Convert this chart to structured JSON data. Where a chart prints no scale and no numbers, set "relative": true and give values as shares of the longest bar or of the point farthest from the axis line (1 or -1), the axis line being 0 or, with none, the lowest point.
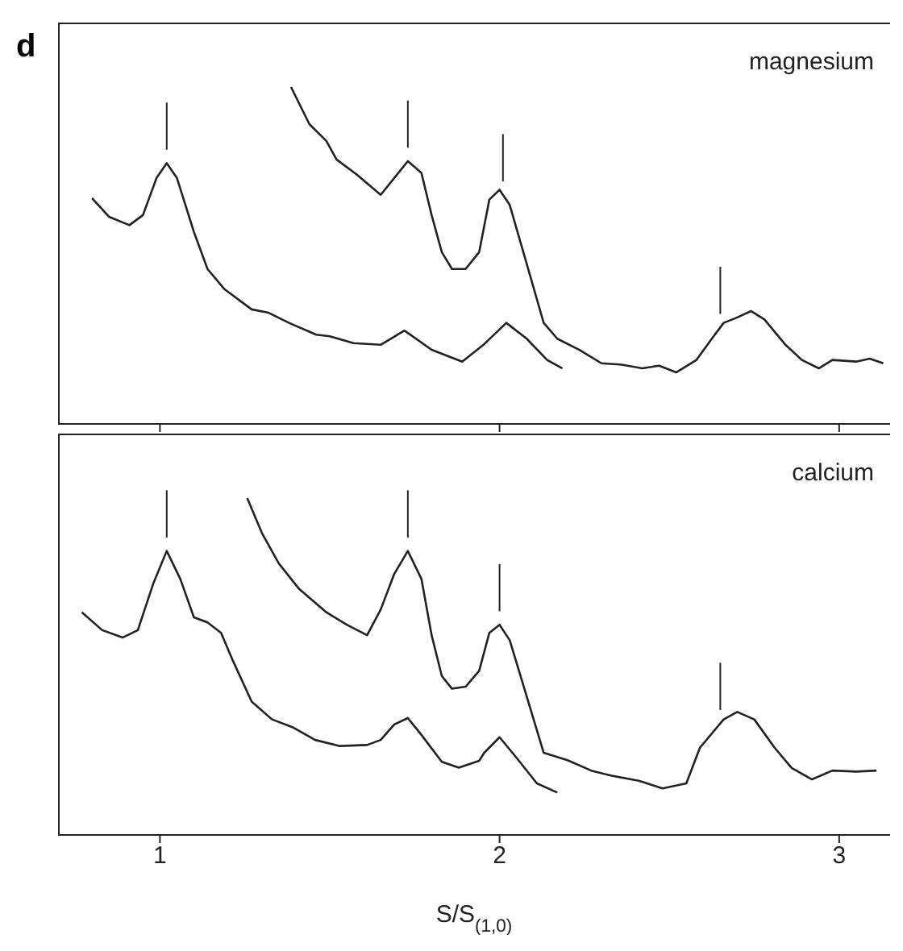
{
  "chart_data": [
    {
      "type": "line",
      "title": "d",
      "relative": true,
      "xlim": [
        0.7,
        3.15
      ],
      "xticks": [
        1,
        2,
        3
      ],
      "tick_labels": false,
      "marker": "none",
      "line_style": "solid",
      "annotations": [
        "magnesium"
      ],
      "ref_lines": [
        {
          "axis": "x",
          "value": 1.02
        },
        {
          "axis": "x",
          "value": 1.73
        },
        {
          "axis": "x",
          "value": 2.01
        },
        {
          "axis": "x",
          "value": 2.65
        }
      ],
      "series": [
        {
          "color": "#222222",
          "x": [
            0.8,
            0.85,
            0.91,
            0.95,
            0.99,
            1.02,
            1.05,
            1.1,
            1.14,
            1.19,
            1.27,
            1.32,
            1.38,
            1.46,
            1.5,
            1.57,
            1.65,
            1.72,
            1.8,
            1.89,
            1.955,
            2.02,
            2.08,
            2.14,
            2.185
          ],
          "values": [
            0.67,
            0.615,
            0.59,
            0.62,
            0.73,
            0.774,
            0.73,
            0.57,
            0.46,
            0.4,
            0.34,
            0.33,
            0.3,
            0.265,
            0.26,
            0.24,
            0.235,
            0.277,
            0.22,
            0.185,
            0.237,
            0.3,
            0.253,
            0.19,
            0.165
          ]
        },
        {
          "color": "#222222",
          "x": [
            1.386,
            1.44,
            1.49,
            1.52,
            1.58,
            1.65,
            1.69,
            1.73,
            1.77,
            1.8,
            1.83,
            1.86,
            1.9,
            1.94,
            1.97,
            2.0,
            2.03,
            2.08,
            2.13,
            2.17,
            2.235,
            2.3,
            2.36,
            2.42,
            2.47,
            2.52,
            2.58,
            2.625,
            2.66,
            2.7,
            2.74,
            2.78,
            2.84,
            2.89,
            2.94,
            2.98,
            3.05,
            3.09,
            3.13
          ],
          "values": [
            1.0,
            0.89,
            0.84,
            0.785,
            0.74,
            0.68,
            0.73,
            0.78,
            0.745,
            0.62,
            0.51,
            0.46,
            0.46,
            0.51,
            0.666,
            0.695,
            0.65,
            0.475,
            0.3,
            0.253,
            0.22,
            0.18,
            0.176,
            0.165,
            0.173,
            0.153,
            0.19,
            0.253,
            0.3,
            0.316,
            0.335,
            0.31,
            0.237,
            0.19,
            0.165,
            0.19,
            0.185,
            0.194,
            0.18
          ]
        }
      ]
    },
    {
      "type": "line",
      "relative": true,
      "xlabel": "S/S$_{(1,0)}$",
      "xlim": [
        0.7,
        3.15
      ],
      "xticks": [
        1,
        2,
        3
      ],
      "tick_labels": "x",
      "marker": "none",
      "line_style": "solid",
      "annotations": [
        "calcium"
      ],
      "ref_lines": [
        {
          "axis": "x",
          "value": 1.02
        },
        {
          "axis": "x",
          "value": 1.73
        },
        {
          "axis": "x",
          "value": 2.0
        },
        {
          "axis": "x",
          "value": 2.65
        }
      ],
      "series": [
        {
          "color": "#222222",
          "x": [
            0.77,
            0.83,
            0.89,
            0.935,
            0.98,
            1.02,
            1.06,
            1.1,
            1.14,
            1.18,
            1.215,
            1.27,
            1.33,
            1.39,
            1.457,
            1.53,
            1.61,
            1.65,
            1.69,
            1.73,
            1.77,
            1.83,
            1.88,
            1.94,
            1.955,
            2.0,
            2.05,
            2.11,
            2.17
          ],
          "values": [
            0.661,
            0.608,
            0.586,
            0.608,
            0.745,
            0.843,
            0.76,
            0.646,
            0.631,
            0.6,
            0.517,
            0.396,
            0.343,
            0.32,
            0.282,
            0.264,
            0.267,
            0.282,
            0.328,
            0.347,
            0.297,
            0.217,
            0.2,
            0.22,
            0.244,
            0.29,
            0.229,
            0.153,
            0.126
          ]
        },
        {
          "color": "#222222",
          "x": [
            1.257,
            1.3,
            1.35,
            1.41,
            1.49,
            1.55,
            1.61,
            1.65,
            1.69,
            1.73,
            1.77,
            1.8,
            1.83,
            1.86,
            1.9,
            1.94,
            1.97,
            2.0,
            2.03,
            2.08,
            2.13,
            2.2,
            2.27,
            2.33,
            2.41,
            2.48,
            2.55,
            2.59,
            2.66,
            2.7,
            2.75,
            2.81,
            2.86,
            2.92,
            2.98,
            3.05,
            3.11
          ],
          "values": [
            1.0,
            0.897,
            0.806,
            0.73,
            0.661,
            0.624,
            0.593,
            0.669,
            0.775,
            0.843,
            0.76,
            0.593,
            0.472,
            0.434,
            0.44,
            0.487,
            0.6,
            0.624,
            0.578,
            0.411,
            0.244,
            0.222,
            0.191,
            0.176,
            0.161,
            0.138,
            0.153,
            0.259,
            0.343,
            0.365,
            0.343,
            0.259,
            0.199,
            0.165,
            0.191,
            0.188,
            0.191
          ]
        }
      ]
    }
  ]
}
